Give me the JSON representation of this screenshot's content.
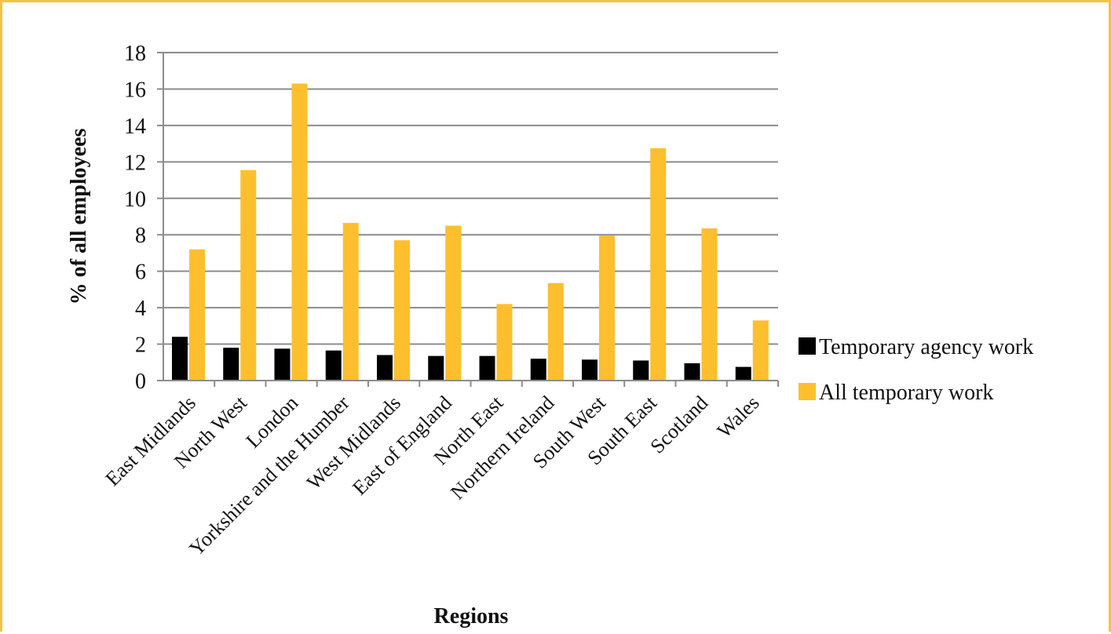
{
  "chart_data": {
    "type": "bar",
    "categories": [
      "East Midlands",
      "North West",
      "London",
      "Yorkshire and the Humber",
      "West Midlands",
      "East of England",
      "North East",
      "Northern Ireland",
      "South West",
      "South East",
      "Scotland",
      "Wales"
    ],
    "series": [
      {
        "name": "Temporary agency work",
        "color": "#000000",
        "values": [
          2.4,
          1.8,
          1.75,
          1.65,
          1.4,
          1.35,
          1.35,
          1.2,
          1.15,
          1.1,
          0.95,
          0.75
        ]
      },
      {
        "name": "All temporary work",
        "color": "#fdbf2d",
        "values": [
          7.2,
          11.55,
          16.3,
          8.65,
          7.7,
          8.5,
          4.2,
          5.35,
          7.95,
          12.75,
          8.35,
          3.3
        ]
      }
    ],
    "title": "",
    "xlabel": "Regions",
    "ylabel": "% of all employees",
    "ylim": [
      0,
      18
    ],
    "yticks": [
      "0",
      "2",
      "4",
      "6",
      "8",
      "10",
      "12",
      "14",
      "16",
      "18"
    ],
    "grid": true,
    "legend": "right"
  }
}
